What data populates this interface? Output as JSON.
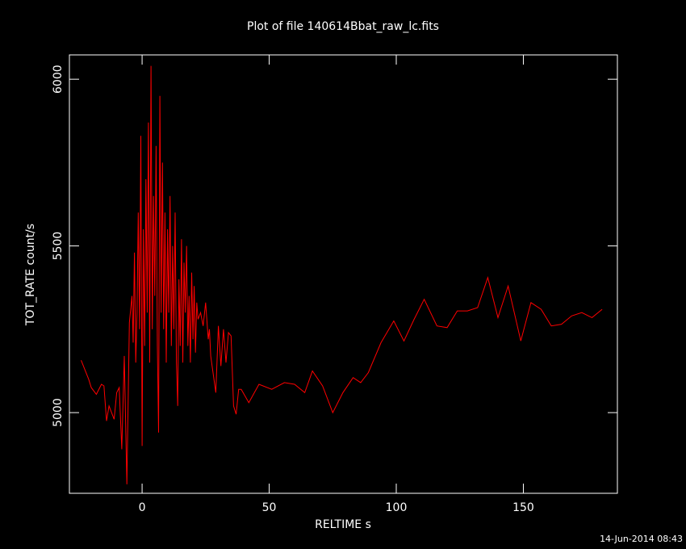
{
  "chart_data": {
    "type": "line",
    "title": "Plot of file 140614Bbat_raw_lc.fits",
    "xlabel": "RELTIME  s",
    "ylabel": "TOT_RATE  count/s",
    "annotation": "14-Jun-2014 08:43",
    "xlim": [
      -28.6,
      187
    ],
    "ylim": [
      4758,
      6073
    ],
    "xticks": [
      0,
      50,
      100,
      150
    ],
    "yticks": [
      5000,
      5500,
      6000
    ],
    "grid": false,
    "series": [
      {
        "color": "#ff0000",
        "x": [
          -24,
          -21,
          -20,
          -18,
          -16,
          -15,
          -14,
          -13,
          -11,
          -10,
          -9,
          -8,
          -7,
          -6,
          -5,
          -4,
          -3.5,
          -3,
          -2.5,
          -2,
          -1.5,
          -1,
          -0.5,
          0,
          0.5,
          1,
          1.5,
          2,
          2.5,
          3,
          3.5,
          4,
          4.5,
          5,
          5.5,
          6,
          6.5,
          7,
          7.5,
          8,
          8.5,
          9,
          9.5,
          10,
          10.5,
          11,
          11.5,
          12,
          12.5,
          13,
          13.5,
          14,
          14.5,
          15,
          15.5,
          16,
          16.5,
          17,
          17.5,
          18,
          18.5,
          19,
          19.5,
          20,
          20.5,
          21,
          21.5,
          22,
          23,
          24,
          25,
          26,
          26.5,
          27,
          29,
          30,
          31,
          32,
          33,
          34,
          35,
          36,
          37,
          38,
          39,
          42,
          46,
          51,
          56,
          60,
          64,
          67,
          71,
          75,
          79,
          83,
          86,
          89,
          94,
          99,
          103,
          107,
          111,
          116,
          120,
          124,
          128,
          132,
          136,
          140,
          144,
          149,
          153,
          157,
          161,
          165,
          169,
          173,
          177,
          181
        ],
        "values": [
          5157,
          5100,
          5075,
          5055,
          5085,
          5080,
          4975,
          5020,
          4980,
          5060,
          5075,
          4890,
          5170,
          4785,
          5270,
          5350,
          5210,
          5480,
          5150,
          5300,
          5600,
          5250,
          5830,
          4900,
          5550,
          5200,
          5700,
          5300,
          5870,
          5150,
          6040,
          5250,
          5650,
          5350,
          5800,
          5200,
          4940,
          5950,
          5300,
          5750,
          5250,
          5600,
          5150,
          5550,
          5300,
          5650,
          5200,
          5500,
          5250,
          5600,
          5150,
          5020,
          5400,
          5200,
          5520,
          5150,
          5450,
          5300,
          5500,
          5200,
          5350,
          5150,
          5420,
          5220,
          5380,
          5180,
          5330,
          5280,
          5300,
          5260,
          5330,
          5220,
          5250,
          5170,
          5060,
          5260,
          5140,
          5250,
          5150,
          5240,
          5230,
          5020,
          4995,
          5070,
          5070,
          5030,
          5085,
          5070,
          5090,
          5085,
          5060,
          5125,
          5080,
          5000,
          5060,
          5105,
          5090,
          5120,
          5210,
          5275,
          5215,
          5280,
          5340,
          5260,
          5255,
          5305,
          5305,
          5315,
          5405,
          5285,
          5380,
          5215,
          5330,
          5310,
          5260,
          5265,
          5290,
          5300,
          5285,
          5310
        ]
      }
    ]
  }
}
